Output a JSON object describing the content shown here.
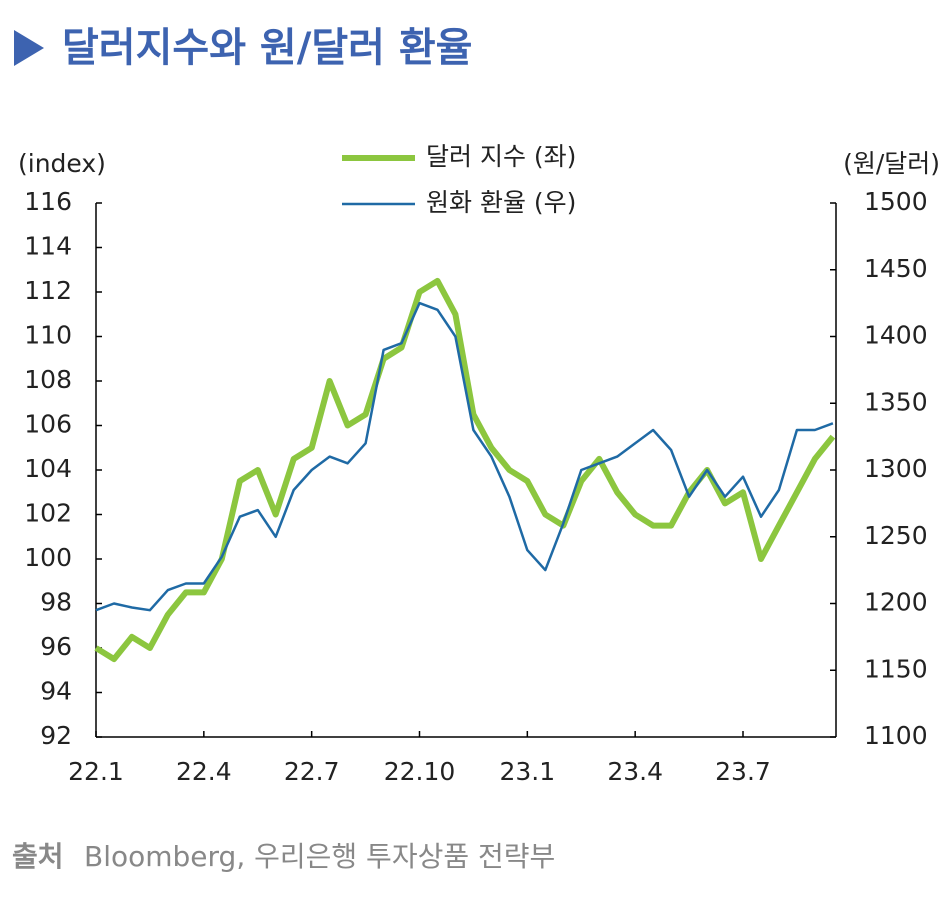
{
  "chart_data": {
    "type": "line",
    "title": "달러지수와 원/달러 환율",
    "source_label": "출처",
    "source": "Bloomberg, 우리은행 투자상품 전략부",
    "y_label": "(index)",
    "y2_label": "(원/달러)",
    "categories": [
      "22.1",
      null,
      null,
      null,
      null,
      null,
      "22.4",
      null,
      null,
      null,
      null,
      null,
      "22.7",
      null,
      null,
      null,
      null,
      null,
      "22.10",
      null,
      null,
      null,
      null,
      null,
      "23.1",
      null,
      null,
      null,
      null,
      null,
      "23.4",
      null,
      null,
      null,
      null,
      null,
      "23.7",
      null,
      null,
      null,
      null,
      null
    ],
    "series": [
      {
        "name": "달러 지수 (좌)",
        "color": "#8cc63f",
        "values": [
          96,
          95.5,
          96.5,
          96,
          97.5,
          98.5,
          98.5,
          100,
          103.5,
          104,
          102,
          104.5,
          105,
          108,
          106,
          106.5,
          109,
          109.5,
          112,
          112.5,
          111,
          106.5,
          105,
          104,
          103.5,
          102,
          101.5,
          103.5,
          104.5,
          103,
          102,
          101.5,
          101.5,
          103,
          104,
          102.5,
          103,
          100,
          101.5,
          103,
          104.5,
          105.5
        ]
      },
      {
        "name": "원화 환율 (우)",
        "color": "#1f6aa5",
        "axis": "y2",
        "values": [
          1195,
          1200,
          1197,
          1195,
          1210,
          1215,
          1215,
          1235,
          1265,
          1270,
          1250,
          1285,
          1300,
          1310,
          1305,
          1320,
          1390,
          1395,
          1425,
          1420,
          1400,
          1330,
          1310,
          1280,
          1240,
          1225,
          1260,
          1300,
          1305,
          1310,
          1320,
          1330,
          1315,
          1280,
          1300,
          1280,
          1295,
          1265,
          1285,
          1330,
          1330,
          1335
        ]
      }
    ],
    "ylim": [
      92,
      116
    ],
    "yticks": [
      92,
      94,
      96,
      98,
      100,
      102,
      104,
      106,
      108,
      110,
      112,
      114,
      116
    ],
    "y2lim": [
      1100,
      1500
    ],
    "y2ticks": [
      1100,
      1150,
      1200,
      1250,
      1300,
      1350,
      1400,
      1450,
      1500
    ],
    "grid": false
  }
}
